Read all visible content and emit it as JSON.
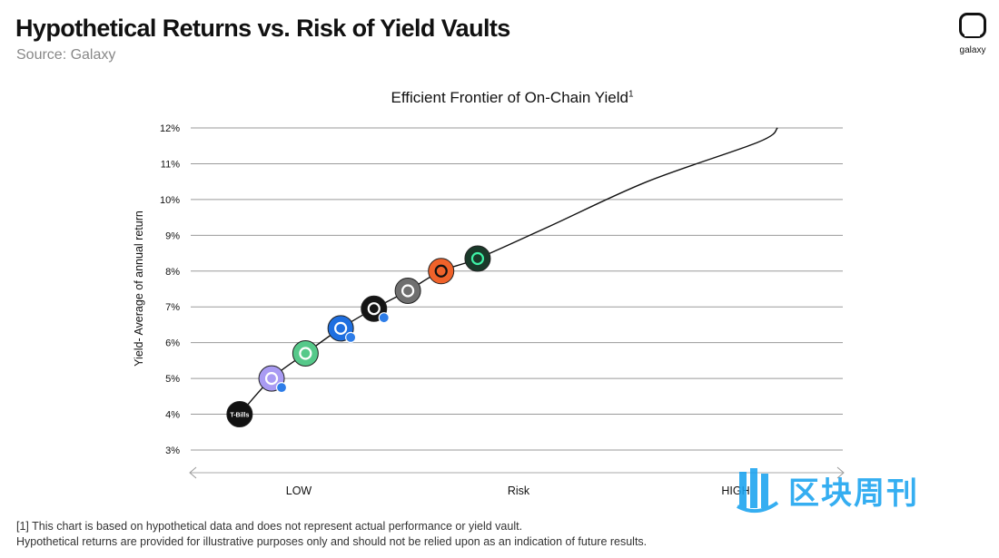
{
  "header": {
    "title": "Hypothetical Returns vs. Risk of Yield Vaults",
    "source": "Source: Galaxy"
  },
  "brand": {
    "name": "galaxy"
  },
  "chart_data": {
    "type": "scatter",
    "title": "Efficient Frontier of On-Chain Yield",
    "title_footnote": "1",
    "ylabel": "Yield- Average of annual return",
    "xlabel": "Risk",
    "x_low_label": "LOW",
    "x_high_label": "HIGH",
    "ylim": [
      3,
      12
    ],
    "xlim": [
      0,
      1
    ],
    "yticks": [
      3,
      4,
      5,
      6,
      7,
      8,
      9,
      10,
      11,
      12
    ],
    "ytick_labels": [
      "3%",
      "4%",
      "5%",
      "6%",
      "7%",
      "8%",
      "9%",
      "10%",
      "11%",
      "12%"
    ],
    "grid": true,
    "frontier_curve": [
      {
        "x": 0.075,
        "y": 4.0
      },
      {
        "x": 0.124,
        "y": 5.0
      },
      {
        "x": 0.176,
        "y": 5.7
      },
      {
        "x": 0.23,
        "y": 6.4
      },
      {
        "x": 0.281,
        "y": 6.95
      },
      {
        "x": 0.333,
        "y": 7.45
      },
      {
        "x": 0.384,
        "y": 8.0
      },
      {
        "x": 0.44,
        "y": 8.35
      },
      {
        "x": 0.55,
        "y": 9.25
      },
      {
        "x": 0.7,
        "y": 10.5
      },
      {
        "x": 0.87,
        "y": 11.6
      },
      {
        "x": 0.9,
        "y": 12.0
      }
    ],
    "points": [
      {
        "name": "T-Bills",
        "label": "T-Bills",
        "x": 0.075,
        "y": 4.0,
        "color": "#111111",
        "fg": "#ffffff",
        "icon": "tbills-icon",
        "badge": false
      },
      {
        "name": "purple-vault",
        "label": "",
        "x": 0.124,
        "y": 5.0,
        "color": "#a99bf3",
        "fg": "#ffffff",
        "icon": "purple-vault-icon",
        "badge": true
      },
      {
        "name": "green-s-vault",
        "label": "",
        "x": 0.176,
        "y": 5.7,
        "color": "#56c98a",
        "fg": "#ffffff",
        "icon": "green-s-icon",
        "badge": false
      },
      {
        "name": "blue-butterfly-vault",
        "label": "",
        "x": 0.23,
        "y": 6.4,
        "color": "#1f6fe0",
        "fg": "#ffffff",
        "icon": "butterfly-icon",
        "badge": true
      },
      {
        "name": "black-diamond-vault",
        "label": "",
        "x": 0.281,
        "y": 6.95,
        "color": "#151515",
        "fg": "#ffffff",
        "icon": "diamond-icon",
        "badge": true
      },
      {
        "name": "gray-vault",
        "label": "",
        "x": 0.333,
        "y": 7.45,
        "color": "#6f6f6f",
        "fg": "#ffffff",
        "icon": "gray-vault-icon",
        "badge": false
      },
      {
        "name": "orange-vault",
        "label": "",
        "x": 0.384,
        "y": 8.0,
        "color": "#f0622a",
        "fg": "#111111",
        "icon": "orange-vault-icon",
        "badge": false
      },
      {
        "name": "dark-green-vault",
        "label": "",
        "x": 0.44,
        "y": 8.35,
        "color": "#1a3a2a",
        "fg": "#3ef0a5",
        "icon": "dark-green-vault-icon",
        "badge": false
      }
    ],
    "badge_color": "#2e7de8"
  },
  "footnotes": {
    "line1": "[1] This chart is based on hypothetical data and does not represent actual performance or yield vault.",
    "line2": "Hypothetical returns are provided for illustrative purposes only and should not be relied upon as an indication of future results."
  },
  "watermark": {
    "text": "区块周刊",
    "color": "#1aa3f0"
  }
}
